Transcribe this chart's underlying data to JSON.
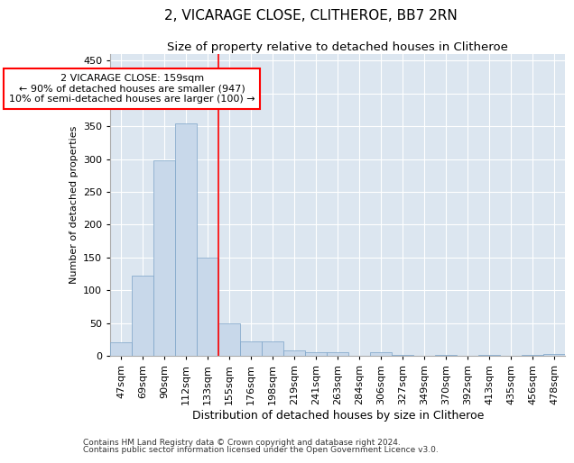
{
  "title": "2, VICARAGE CLOSE, CLITHEROE, BB7 2RN",
  "subtitle": "Size of property relative to detached houses in Clitheroe",
  "xlabel": "Distribution of detached houses by size in Clitheroe",
  "ylabel": "Number of detached properties",
  "footnote1": "Contains HM Land Registry data © Crown copyright and database right 2024.",
  "footnote2": "Contains public sector information licensed under the Open Government Licence v3.0.",
  "bar_labels": [
    "47sqm",
    "69sqm",
    "90sqm",
    "112sqm",
    "133sqm",
    "155sqm",
    "176sqm",
    "198sqm",
    "219sqm",
    "241sqm",
    "263sqm",
    "284sqm",
    "306sqm",
    "327sqm",
    "349sqm",
    "370sqm",
    "392sqm",
    "413sqm",
    "435sqm",
    "456sqm",
    "478sqm"
  ],
  "bar_heights": [
    20,
    122,
    298,
    354,
    150,
    50,
    22,
    22,
    8,
    5,
    5,
    0,
    5,
    2,
    0,
    2,
    0,
    1,
    0,
    1,
    3
  ],
  "bar_color": "#c8d8ea",
  "bar_edge_color": "#7ba3c8",
  "annotation_line1": "2 VICARAGE CLOSE: 159sqm",
  "annotation_line2": "← 90% of detached houses are smaller (947)",
  "annotation_line3": "10% of semi-detached houses are larger (100) →",
  "annotation_box_color": "white",
  "annotation_box_edge_color": "red",
  "vline_color": "red",
  "vline_x": 4.5,
  "ylim": [
    0,
    460
  ],
  "yticks": [
    0,
    50,
    100,
    150,
    200,
    250,
    300,
    350,
    400,
    450
  ],
  "background_color": "#dce6f0",
  "title_fontsize": 11,
  "subtitle_fontsize": 9.5,
  "xlabel_fontsize": 9,
  "ylabel_fontsize": 8,
  "tick_fontsize": 8,
  "annotation_fontsize": 8,
  "footnote_fontsize": 6.5
}
